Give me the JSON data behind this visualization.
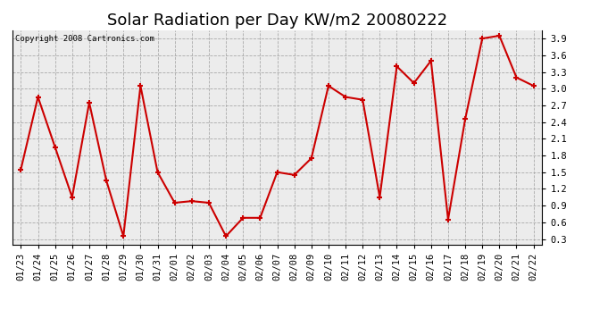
{
  "title": "Solar Radiation per Day KW/m2 20080222",
  "copyright_text": "Copyright 2008 Cartronics.com",
  "dates": [
    "01/23",
    "01/24",
    "01/25",
    "01/26",
    "01/27",
    "01/28",
    "01/29",
    "01/30",
    "01/31",
    "02/01",
    "02/02",
    "02/03",
    "02/04",
    "02/05",
    "02/06",
    "02/07",
    "02/08",
    "02/09",
    "02/10",
    "02/11",
    "02/12",
    "02/13",
    "02/14",
    "02/15",
    "02/16",
    "02/17",
    "02/18",
    "02/19",
    "02/20",
    "02/21",
    "02/22"
  ],
  "values": [
    1.55,
    2.85,
    1.95,
    1.05,
    2.75,
    1.35,
    0.35,
    3.05,
    1.5,
    0.95,
    0.98,
    0.95,
    0.35,
    0.68,
    0.68,
    1.5,
    1.45,
    1.75,
    3.05,
    2.85,
    2.8,
    1.05,
    3.4,
    3.1,
    3.5,
    0.65,
    2.45,
    3.9,
    3.95,
    3.2,
    3.05
  ],
  "line_color": "#cc0000",
  "marker": "+",
  "marker_size": 5,
  "line_width": 1.5,
  "bg_color": "#ffffff",
  "plot_bg_color": "#ececec",
  "grid_color": "#aaaaaa",
  "ylim": [
    0.2,
    4.05
  ],
  "yticks": [
    0.3,
    0.6,
    0.9,
    1.2,
    1.5,
    1.8,
    2.1,
    2.4,
    2.7,
    3.0,
    3.3,
    3.6,
    3.9
  ],
  "title_fontsize": 13,
  "tick_fontsize": 7.5,
  "copyright_fontsize": 6.5
}
